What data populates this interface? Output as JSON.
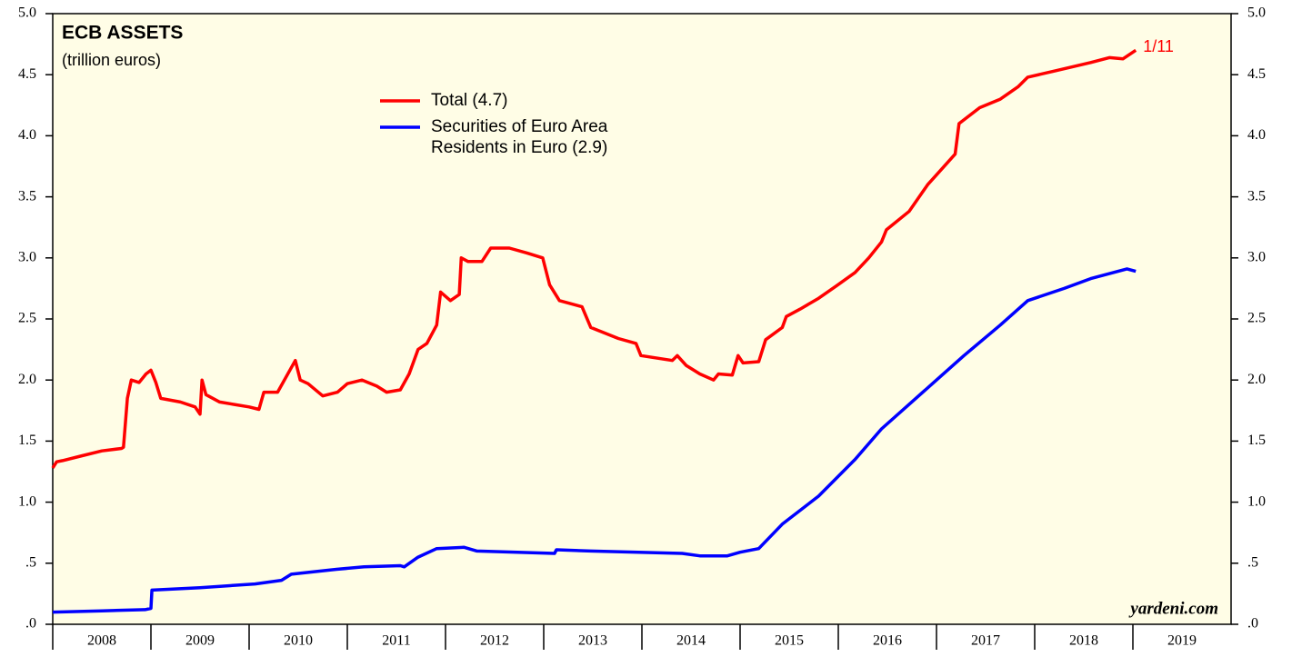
{
  "chart_data": {
    "type": "line",
    "title": "ECB ASSETS",
    "subtitle": "(trillion euros)",
    "annotation": "1/11",
    "source": "yardeni.com",
    "xlim": [
      2008,
      2020
    ],
    "xticks": [
      2008,
      2009,
      2010,
      2011,
      2012,
      2013,
      2014,
      2015,
      2016,
      2017,
      2018,
      2019
    ],
    "ylim": [
      0,
      5
    ],
    "yticks": [
      {
        "value": 0,
        "label": ".0"
      },
      {
        "value": 0.5,
        "label": ".5"
      },
      {
        "value": 1,
        "label": "1.0"
      },
      {
        "value": 1.5,
        "label": "1.5"
      },
      {
        "value": 2,
        "label": "2.0"
      },
      {
        "value": 2.5,
        "label": "2.5"
      },
      {
        "value": 3,
        "label": "3.0"
      },
      {
        "value": 3.5,
        "label": "3.5"
      },
      {
        "value": 4,
        "label": "4.0"
      },
      {
        "value": 4.5,
        "label": "4.5"
      },
      {
        "value": 5,
        "label": "5.0"
      }
    ],
    "series": [
      {
        "name": "Total (4.7)",
        "color": "#ff0000",
        "x": [
          2008.0,
          2008.04,
          2008.1,
          2008.3,
          2008.5,
          2008.7,
          2008.72,
          2008.76,
          2008.8,
          2008.88,
          2008.95,
          2009.0,
          2009.05,
          2009.1,
          2009.3,
          2009.45,
          2009.5,
          2009.52,
          2009.56,
          2009.7,
          2009.85,
          2010.0,
          2010.1,
          2010.15,
          2010.29,
          2010.47,
          2010.52,
          2010.6,
          2010.75,
          2010.9,
          2011.0,
          2011.15,
          2011.3,
          2011.4,
          2011.54,
          2011.63,
          2011.72,
          2011.81,
          2011.91,
          2011.95,
          2012.05,
          2012.14,
          2012.16,
          2012.23,
          2012.37,
          2012.46,
          2012.65,
          2012.83,
          2012.99,
          2013.06,
          2013.16,
          2013.39,
          2013.48,
          2013.76,
          2013.94,
          2013.99,
          2014.31,
          2014.36,
          2014.45,
          2014.59,
          2014.73,
          2014.78,
          2014.92,
          2014.98,
          2015.03,
          2015.19,
          2015.26,
          2015.43,
          2015.47,
          2015.61,
          2015.8,
          2015.98,
          2016.17,
          2016.31,
          2016.44,
          2016.49,
          2016.72,
          2016.91,
          2017.0,
          2017.19,
          2017.23,
          2017.44,
          2017.65,
          2017.83,
          2017.93,
          2018.2,
          2018.57,
          2018.76,
          2018.9,
          2019.03
        ],
        "values": [
          1.28,
          1.33,
          1.34,
          1.38,
          1.42,
          1.44,
          1.45,
          1.85,
          2.0,
          1.98,
          2.05,
          2.08,
          1.98,
          1.85,
          1.82,
          1.78,
          1.72,
          2.0,
          1.88,
          1.82,
          1.8,
          1.78,
          1.76,
          1.9,
          1.9,
          2.16,
          2.0,
          1.97,
          1.87,
          1.9,
          1.97,
          2.0,
          1.95,
          1.9,
          1.92,
          2.05,
          2.25,
          2.3,
          2.45,
          2.72,
          2.65,
          2.7,
          3.0,
          2.97,
          2.97,
          3.08,
          3.08,
          3.04,
          3.0,
          2.78,
          2.65,
          2.6,
          2.43,
          2.34,
          2.3,
          2.2,
          2.16,
          2.2,
          2.12,
          2.05,
          2.0,
          2.05,
          2.04,
          2.2,
          2.14,
          2.15,
          2.33,
          2.43,
          2.52,
          2.58,
          2.67,
          2.77,
          2.88,
          3.0,
          3.13,
          3.23,
          3.38,
          3.6,
          3.68,
          3.85,
          4.1,
          4.23,
          4.3,
          4.4,
          4.48,
          4.53,
          4.6,
          4.64,
          4.63,
          4.7
        ]
      },
      {
        "name": "Securities of Euro Area Residents in Euro (2.9)",
        "color": "#0000ff",
        "x": [
          2008.0,
          2008.5,
          2008.94,
          2009.0,
          2009.01,
          2009.5,
          2010.06,
          2010.33,
          2010.43,
          2010.89,
          2011.17,
          2011.54,
          2011.58,
          2011.72,
          2011.91,
          2012.19,
          2012.32,
          2013.11,
          2013.13,
          2013.48,
          2014.41,
          2014.59,
          2014.87,
          2015.0,
          2015.19,
          2015.43,
          2015.8,
          2016.17,
          2016.44,
          2016.72,
          2017.0,
          2017.28,
          2017.65,
          2017.93,
          2018.3,
          2018.57,
          2018.94,
          2019.03
        ],
        "values": [
          0.1,
          0.11,
          0.12,
          0.13,
          0.28,
          0.3,
          0.33,
          0.36,
          0.41,
          0.45,
          0.47,
          0.48,
          0.47,
          0.55,
          0.62,
          0.63,
          0.6,
          0.58,
          0.61,
          0.6,
          0.58,
          0.56,
          0.56,
          0.59,
          0.62,
          0.82,
          1.05,
          1.35,
          1.6,
          1.8,
          2.0,
          2.2,
          2.45,
          2.65,
          2.75,
          2.83,
          2.91,
          2.89
        ]
      }
    ]
  }
}
